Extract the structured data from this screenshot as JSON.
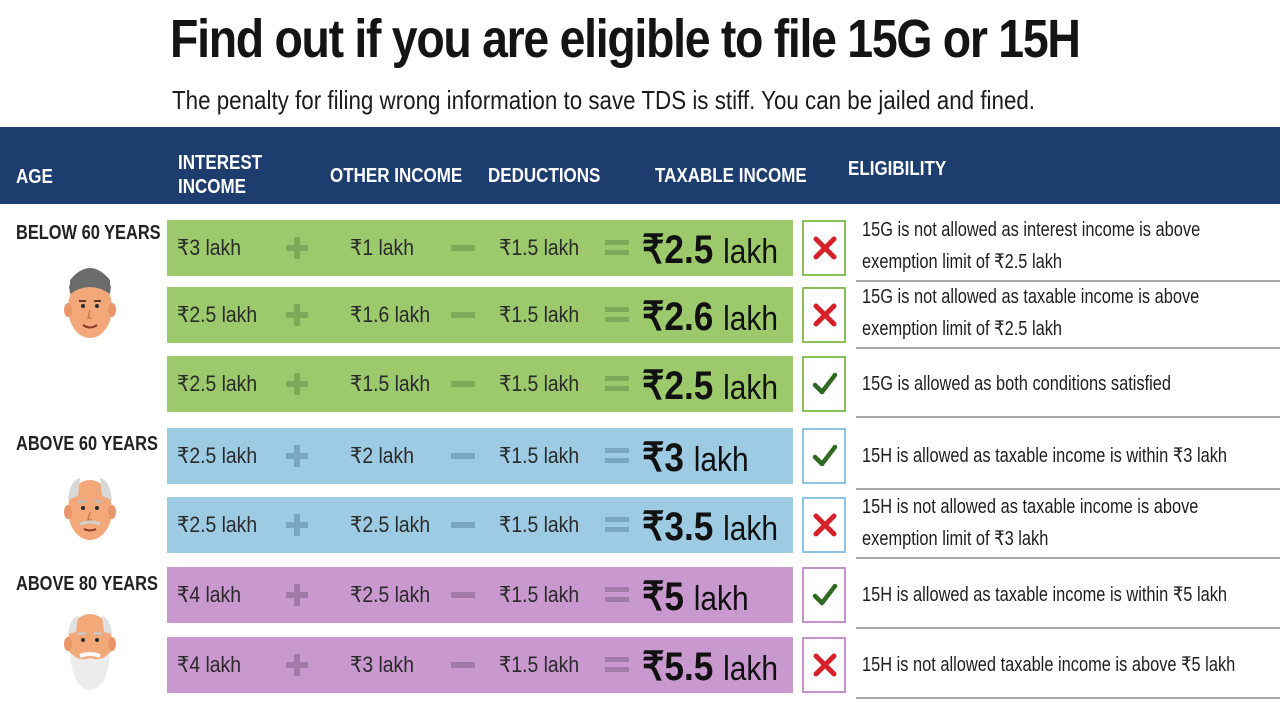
{
  "title": "Find out if you are eligible to file 15G or 15H",
  "subtitle": "The penalty for filing wrong information to save TDS is stiff. You can be jailed and fined.",
  "headers": {
    "age": "AGE",
    "interest_1": "INTEREST",
    "interest_2": "INCOME",
    "other": "OTHER INCOME",
    "deductions": "DEDUCTIONS",
    "taxable": "TAXABLE INCOME",
    "eligibility": "ELIGIBILITY"
  },
  "age_groups": [
    {
      "label": "BELOW 60 YEARS",
      "face": "young-man-face-icon"
    },
    {
      "label": "ABOVE 60 YEARS",
      "face": "senior-man-face-icon"
    },
    {
      "label": "ABOVE 80 YEARS",
      "face": "bearded-elder-face-icon"
    }
  ],
  "rows": [
    {
      "interest": "₹3 lakh",
      "other": "₹1 lakh",
      "deductions": "₹1.5 lakh",
      "taxable_value": "₹2.5",
      "taxable_unit": "lakh",
      "eligible": false,
      "elig_1": "15G is not allowed as interest income is above",
      "elig_2": "exemption limit of ₹2.5 lakh"
    },
    {
      "interest": "₹2.5 lakh",
      "other": "₹1.6 lakh",
      "deductions": "₹1.5 lakh",
      "taxable_value": "₹2.6",
      "taxable_unit": "lakh",
      "eligible": false,
      "elig_1": "15G is not allowed as taxable income is above",
      "elig_2": "exemption limit of ₹2.5 lakh"
    },
    {
      "interest": "₹2.5 lakh",
      "other": "₹1.5 lakh",
      "deductions": "₹1.5 lakh",
      "taxable_value": "₹2.5",
      "taxable_unit": "lakh",
      "eligible": true,
      "elig_1": "15G is allowed as both conditions satisfied",
      "elig_2": ""
    },
    {
      "interest": "₹2.5 lakh",
      "other": "₹2 lakh",
      "deductions": "₹1.5 lakh",
      "taxable_value": "₹3",
      "taxable_unit": "lakh",
      "eligible": true,
      "elig_1": "15H is allowed as taxable income is within ₹3 lakh",
      "elig_2": ""
    },
    {
      "interest": "₹2.5 lakh",
      "other": "₹2.5 lakh",
      "deductions": "₹1.5 lakh",
      "taxable_value": "₹3.5",
      "taxable_unit": "lakh",
      "eligible": false,
      "elig_1": "15H is not allowed as taxable income is above",
      "elig_2": "exemption limit of ₹3 lakh"
    },
    {
      "interest": "₹4 lakh",
      "other": "₹2.5 lakh",
      "deductions": "₹1.5 lakh",
      "taxable_value": "₹5",
      "taxable_unit": "lakh",
      "eligible": true,
      "elig_1": "15H is allowed as taxable income is within ₹5 lakh",
      "elig_2": ""
    },
    {
      "interest": "₹4 lakh",
      "other": "₹3 lakh",
      "deductions": "₹1.5 lakh",
      "taxable_value": "₹5.5",
      "taxable_unit": "lakh",
      "eligible": false,
      "elig_1": "15H is not allowed taxable income is above ₹5 lakh",
      "elig_2": ""
    }
  ],
  "colors": {
    "header": "#1d3d6e",
    "green": "#9cc96b",
    "blue": "#9dcbe3",
    "pink": "#c898cf",
    "cross": "#d6202a",
    "tick": "#2f6a22"
  }
}
